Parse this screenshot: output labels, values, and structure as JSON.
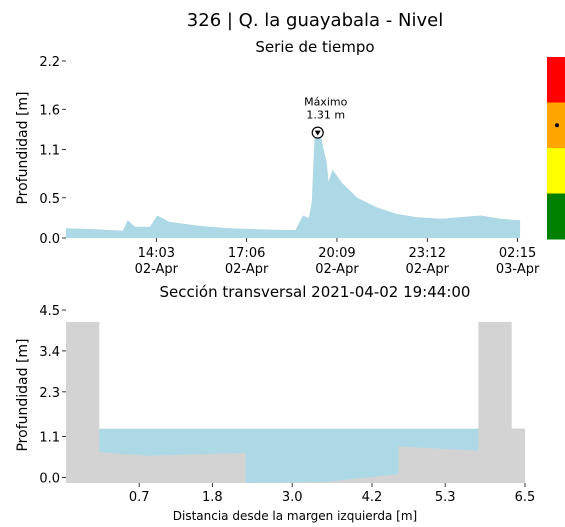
{
  "header": {
    "title": "326 | Q. la guayabala - Nivel"
  },
  "chart_data": [
    {
      "type": "area",
      "title": "Serie de tiempo",
      "ylabel": "Profundidad [m]",
      "xlabel": "",
      "ylim": [
        0,
        2.2
      ],
      "y_ticks": [
        "0.0",
        "0.5",
        "1.1",
        "1.6",
        "2.2"
      ],
      "x_range": [
        "2021-04-02 11:00",
        "2021-04-03 02:30"
      ],
      "x_ticks": [
        {
          "time": "2021-04-02 14:03",
          "label": "14:03",
          "sublabel": "02-Apr"
        },
        {
          "time": "2021-04-02 17:06",
          "label": "17:06",
          "sublabel": "02-Apr"
        },
        {
          "time": "2021-04-02 20:09",
          "label": "20:09",
          "sublabel": "02-Apr"
        },
        {
          "time": "2021-04-02 23:12",
          "label": "23:12",
          "sublabel": "02-Apr"
        },
        {
          "time": "2021-04-03 02:15",
          "label": "02:15",
          "sublabel": "03-Apr"
        }
      ],
      "series": [
        {
          "color": "#add8e6",
          "points": [
            [
              "2021-04-02 11:00",
              0.12
            ],
            [
              "2021-04-02 12:00",
              0.11
            ],
            [
              "2021-04-02 12:55",
              0.09
            ],
            [
              "2021-04-02 13:05",
              0.22
            ],
            [
              "2021-04-02 13:20",
              0.14
            ],
            [
              "2021-04-02 13:50",
              0.14
            ],
            [
              "2021-04-02 14:05",
              0.28
            ],
            [
              "2021-04-02 14:30",
              0.2
            ],
            [
              "2021-04-02 15:30",
              0.15
            ],
            [
              "2021-04-02 16:30",
              0.12
            ],
            [
              "2021-04-02 17:30",
              0.11
            ],
            [
              "2021-04-02 18:20",
              0.1
            ],
            [
              "2021-04-02 18:45",
              0.1
            ],
            [
              "2021-04-02 19:00",
              0.28
            ],
            [
              "2021-04-02 19:12",
              0.25
            ],
            [
              "2021-04-02 19:18",
              0.45
            ],
            [
              "2021-04-02 19:24",
              1.31
            ],
            [
              "2021-04-02 19:36",
              1.29
            ],
            [
              "2021-04-02 19:42",
              1.1
            ],
            [
              "2021-04-02 19:48",
              0.95
            ],
            [
              "2021-04-02 19:52",
              0.7
            ],
            [
              "2021-04-02 20:00",
              0.85
            ],
            [
              "2021-04-02 20:20",
              0.68
            ],
            [
              "2021-04-02 20:50",
              0.5
            ],
            [
              "2021-04-02 21:30",
              0.38
            ],
            [
              "2021-04-02 22:10",
              0.3
            ],
            [
              "2021-04-02 22:50",
              0.26
            ],
            [
              "2021-04-02 23:40",
              0.24
            ],
            [
              "2021-04-03 00:20",
              0.26
            ],
            [
              "2021-04-03 01:00",
              0.28
            ],
            [
              "2021-04-03 01:40",
              0.24
            ],
            [
              "2021-04-03 02:20",
              0.22
            ]
          ]
        }
      ],
      "annotation": {
        "label": "Máximo",
        "value_text": "1.31 m",
        "time": "2021-04-02 19:30",
        "value": 1.31
      },
      "alert_scale": {
        "colors": [
          "#ff0000",
          "#ffa500",
          "#ffff00",
          "#008000"
        ],
        "current_level": "orange"
      }
    },
    {
      "type": "area",
      "title": "Sección transversal 2021-04-02 19:44:00",
      "xlabel": "Distancia desde la margen izquierda [m]",
      "ylabel": "Profundidad [m]",
      "xlim": [
        -0.4,
        6.5
      ],
      "ylim": [
        -0.15,
        4.5
      ],
      "x_ticks": [
        "0.7",
        "1.8",
        "3.0",
        "4.2",
        "5.3",
        "6.5"
      ],
      "y_ticks": [
        "0.0",
        "1.1",
        "2.3",
        "3.4",
        "4.5"
      ],
      "water_level": 1.31,
      "terrain": [
        [
          -0.4,
          4.18
        ],
        [
          0.1,
          4.18
        ],
        [
          0.1,
          0.68
        ],
        [
          0.8,
          0.58
        ],
        [
          2.3,
          0.66
        ],
        [
          2.3,
          -0.15
        ],
        [
          3.5,
          -0.12
        ],
        [
          4.6,
          0.09
        ],
        [
          4.6,
          0.83
        ],
        [
          5.8,
          0.72
        ],
        [
          5.8,
          4.18
        ],
        [
          6.3,
          4.18
        ],
        [
          6.3,
          1.31
        ],
        [
          6.5,
          1.31
        ]
      ],
      "terrain_color": "#d3d3d3",
      "water_color": "#add8e6"
    }
  ]
}
